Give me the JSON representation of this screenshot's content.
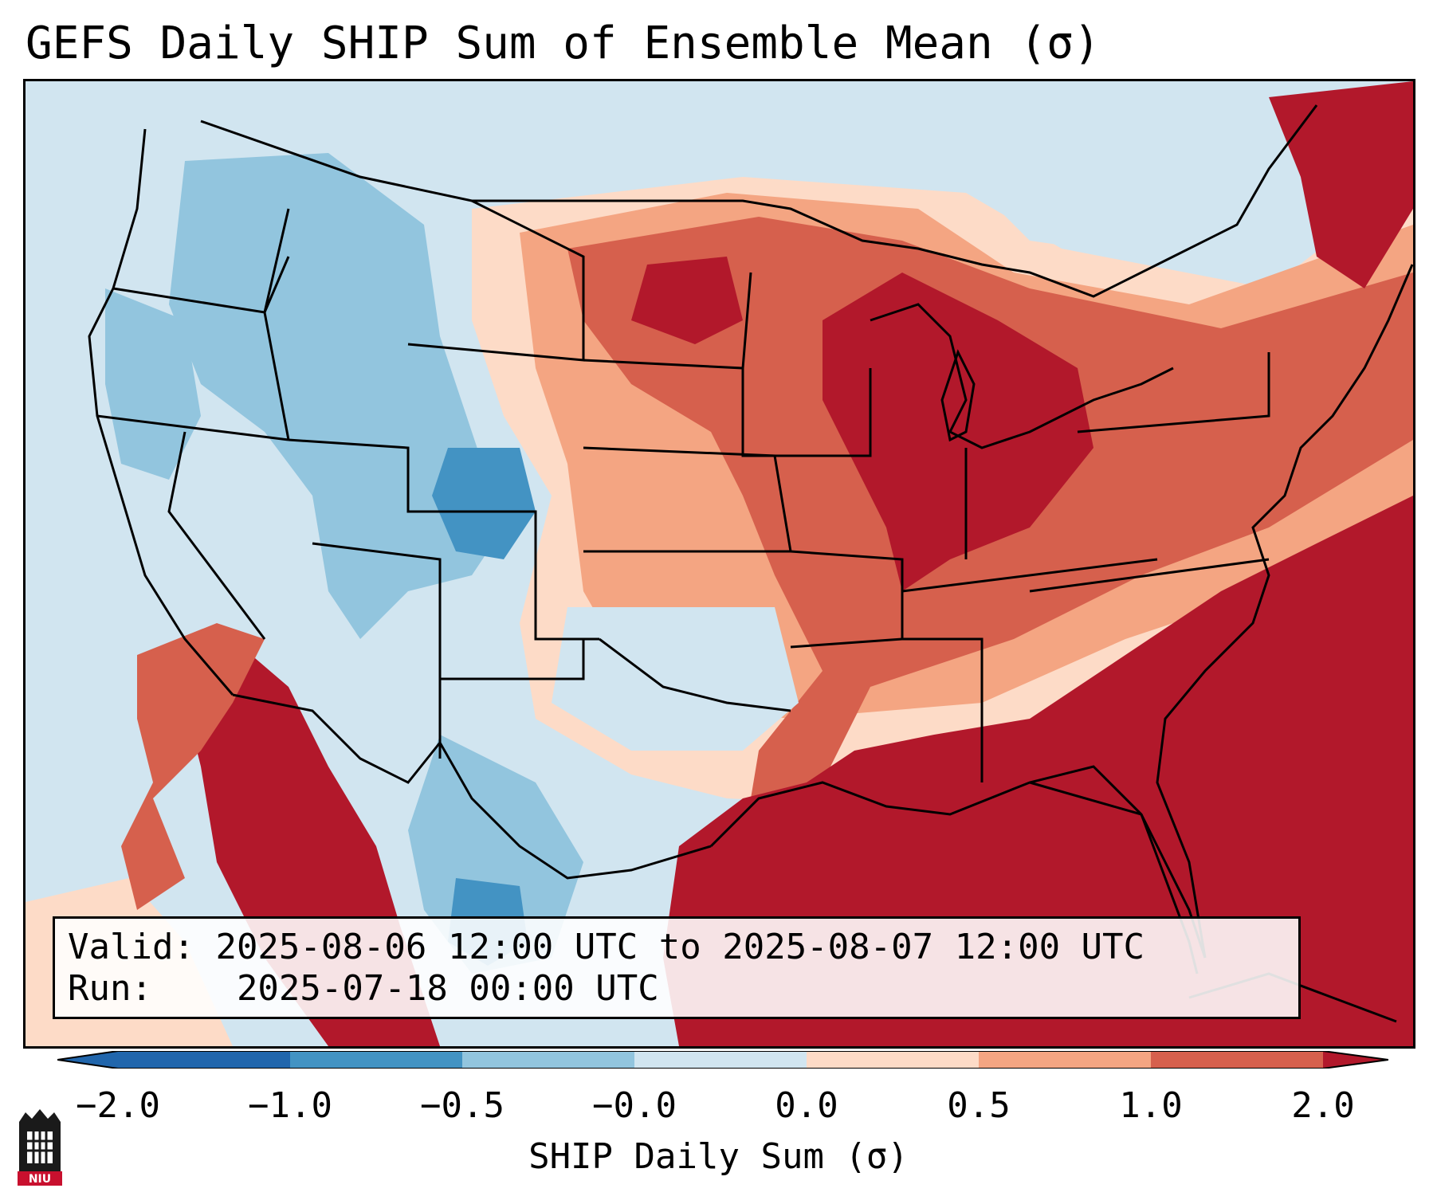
{
  "title": "GEFS Daily SHIP Sum of Ensemble Mean (σ)",
  "info": {
    "valid_label": "Valid:",
    "valid_value": "2025-08-06 12:00 UTC to 2025-08-07 12:00 UTC",
    "run_label": "Run:",
    "run_value": "2025-07-18 00:00 UTC"
  },
  "colorbar": {
    "label": "SHIP Daily Sum (σ)",
    "ticks": [
      "−2.0",
      "−1.0",
      "−0.5",
      "−0.0",
      "0.0",
      "0.5",
      "1.0",
      "2.0"
    ],
    "colors": [
      "#2166ac",
      "#4393c3",
      "#92c5de",
      "#d1e5f0",
      "#fddbc7",
      "#f4a582",
      "#d6604d",
      "#b2182b"
    ],
    "extend": "both"
  },
  "map": {
    "region": "CONUS",
    "colors": {
      "lt_neg2": "#2166ac",
      "neg2_neg1": "#4393c3",
      "neg1_neg05": "#92c5de",
      "neg05_0": "#d1e5f0",
      "zero_05": "#fddbc7",
      "p05_1": "#f4a582",
      "p1_2": "#d6604d",
      "gt2": "#b2182b"
    }
  },
  "logo": {
    "text": "NIU"
  }
}
